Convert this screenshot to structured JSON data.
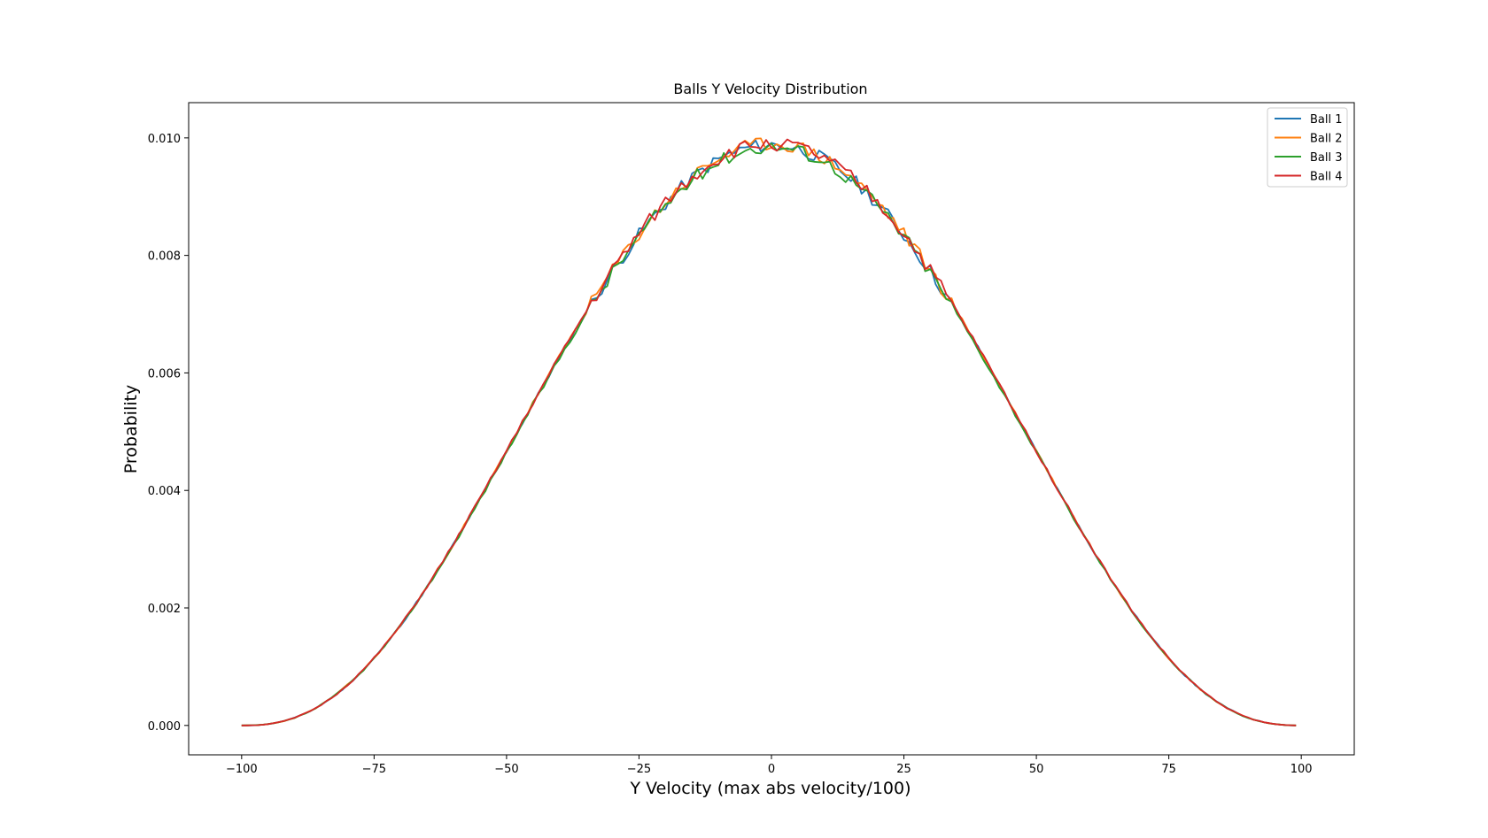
{
  "chart_data": {
    "type": "line",
    "title": "Balls Y Velocity Distribution",
    "xlabel": "Y Velocity (max abs velocity/100)",
    "ylabel": "Probability",
    "xlim": [
      -110,
      110
    ],
    "ylim": [
      -0.0005,
      0.0106
    ],
    "xticks": [
      -100,
      -75,
      -50,
      -25,
      0,
      25,
      50,
      75,
      100
    ],
    "xtick_labels": [
      "−100",
      "−75",
      "−50",
      "−25",
      "0",
      "25",
      "50",
      "75",
      "100"
    ],
    "yticks": [
      0.0,
      0.002,
      0.004,
      0.006,
      0.008,
      0.01
    ],
    "ytick_labels": [
      "0.000",
      "0.002",
      "0.004",
      "0.006",
      "0.008",
      "0.010"
    ],
    "grid": false,
    "legend_position": "top-right",
    "x_range": [
      -100,
      99
    ],
    "series": [
      {
        "name": "Ball 1",
        "color": "#1f77b4",
        "peak": 0.00988,
        "noise_seed": 11
      },
      {
        "name": "Ball 2",
        "color": "#ff7f0e",
        "peak": 0.0099,
        "noise_seed": 23
      },
      {
        "name": "Ball 3",
        "color": "#2ca02c",
        "peak": 0.00985,
        "noise_seed": 37
      },
      {
        "name": "Ball 4",
        "color": "#d62728",
        "peak": 0.0099,
        "noise_seed": 51
      }
    ]
  }
}
